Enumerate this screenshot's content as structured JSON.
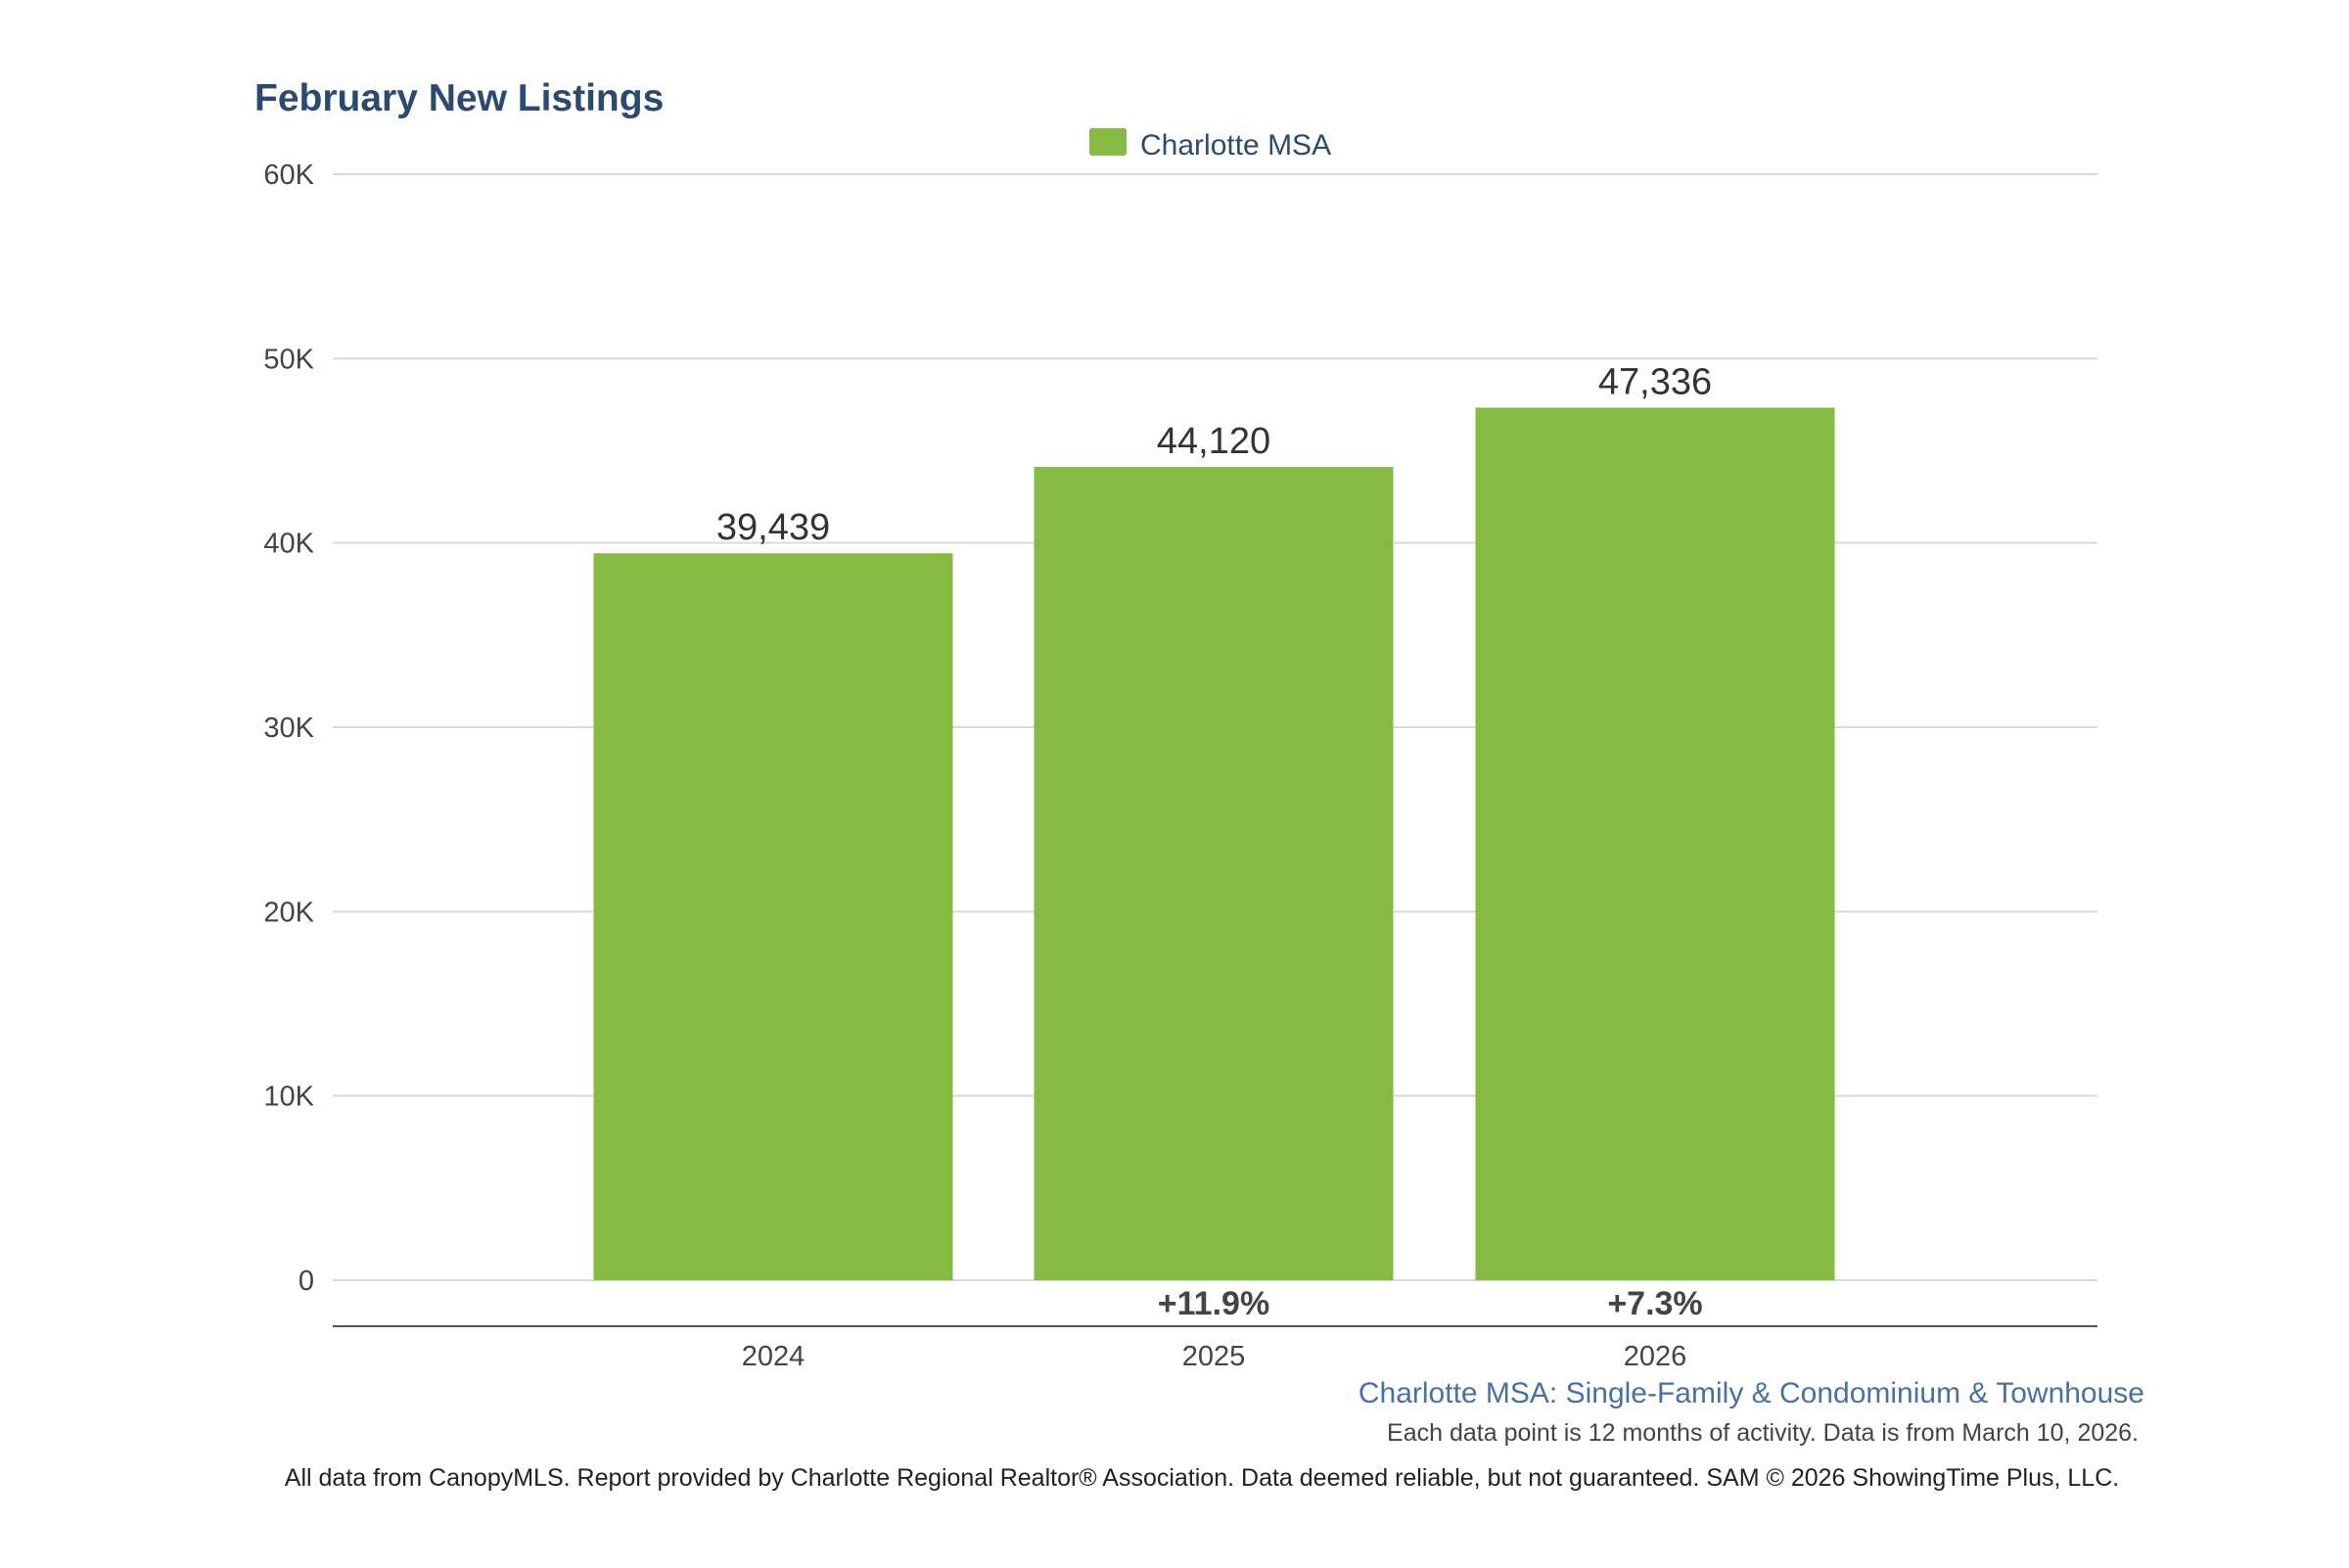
{
  "chart_data": {
    "type": "bar",
    "title": "February New Listings",
    "categories": [
      "2024",
      "2025",
      "2026"
    ],
    "series": [
      {
        "name": "Charlotte MSA",
        "values": [
          39439,
          44120,
          47336
        ],
        "value_labels": [
          "39,439",
          "44,120",
          "47,336"
        ],
        "change_labels": [
          "",
          "+11.9%",
          "+7.3%"
        ]
      }
    ],
    "ylim": [
      0,
      60000
    ],
    "yticks": [
      0,
      10000,
      20000,
      30000,
      40000,
      50000,
      60000
    ],
    "ytick_labels": [
      "0",
      "10K",
      "20K",
      "30K",
      "40K",
      "50K",
      "60K"
    ],
    "xlabel": "",
    "ylabel": "",
    "grid": true,
    "legend_position": "top-center",
    "colors": {
      "bar": "#86ba43",
      "title": "#2c4a6e",
      "subtitle": "#4a6fa0",
      "gridline": "#d9d9d9",
      "axis": "#555555"
    }
  },
  "subtitle": "Charlotte MSA: Single-Family & Condominium & Townhouse",
  "note": "Each data point is 12 months of activity. Data is from March 10, 2026.",
  "footer": "All data from CanopyMLS. Report provided by Charlotte Regional Realtor® Association. Data deemed reliable, but not guaranteed. SAM © 2026 ShowingTime Plus, LLC."
}
